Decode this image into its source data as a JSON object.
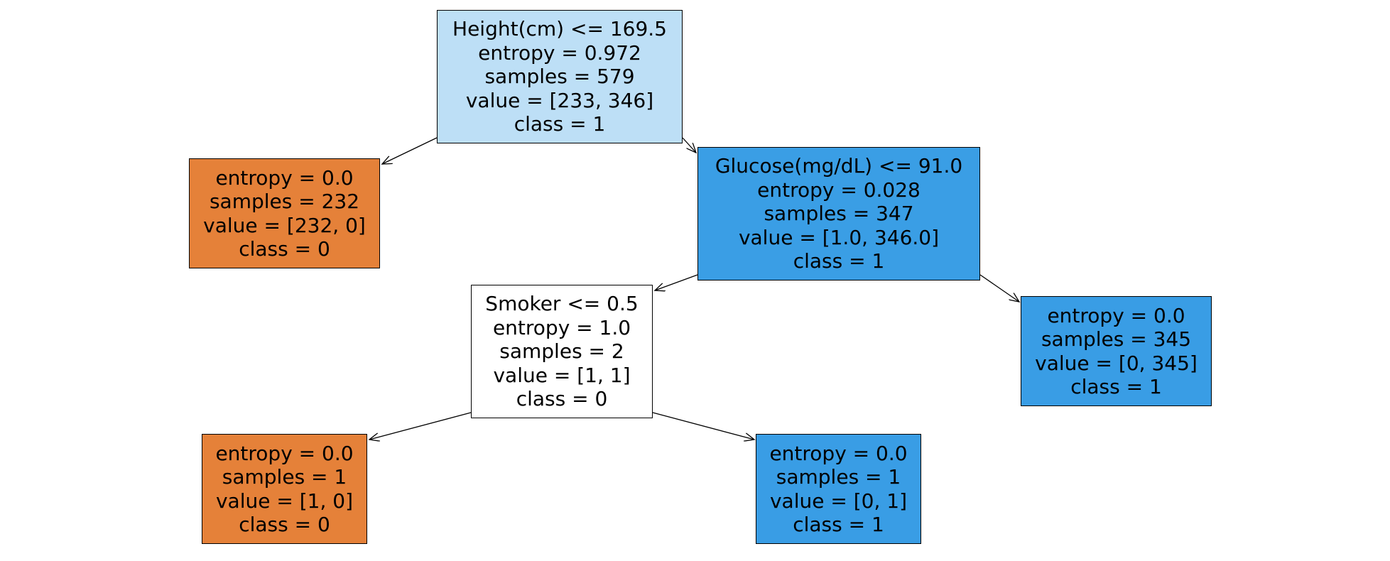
{
  "tree": {
    "colors": {
      "class_0": "#e58139",
      "class_1": "#399de5",
      "root": "#bddff6",
      "neutral": "#ffffff",
      "edge": "#000000"
    },
    "nodes": [
      {
        "id": "root",
        "condition": "Height(cm) <= 169.5",
        "entropy": "entropy = 0.972",
        "samples": "samples = 579",
        "value": "value = [233, 346]",
        "class": "class = 1",
        "color": "#bddff6"
      },
      {
        "id": "leaf-left-1",
        "condition": "",
        "entropy": "entropy = 0.0",
        "samples": "samples = 232",
        "value": "value = [232, 0]",
        "class": "class = 0",
        "color": "#e58139"
      },
      {
        "id": "glucose",
        "condition": "Glucose(mg/dL) <= 91.0",
        "entropy": "entropy = 0.028",
        "samples": "samples = 347",
        "value": "value = [1.0, 346.0]",
        "class": "class = 1",
        "color": "#3a9ee5"
      },
      {
        "id": "smoker",
        "condition": "Smoker <= 0.5",
        "entropy": "entropy = 1.0",
        "samples": "samples = 2",
        "value": "value = [1, 1]",
        "class": "class = 0",
        "color": "#ffffff"
      },
      {
        "id": "leaf-right-glucose",
        "condition": "",
        "entropy": "entropy = 0.0",
        "samples": "samples = 345",
        "value": "value = [0, 345]",
        "class": "class = 1",
        "color": "#399de5"
      },
      {
        "id": "leaf-smoker-left",
        "condition": "",
        "entropy": "entropy = 0.0",
        "samples": "samples = 1",
        "value": "value = [1, 0]",
        "class": "class = 0",
        "color": "#e58139"
      },
      {
        "id": "leaf-smoker-right",
        "condition": "",
        "entropy": "entropy = 0.0",
        "samples": "samples = 1",
        "value": "value = [0, 1]",
        "class": "class = 1",
        "color": "#399de5"
      }
    ],
    "edges": [
      {
        "from": "root",
        "to": "leaf-left-1"
      },
      {
        "from": "root",
        "to": "glucose"
      },
      {
        "from": "glucose",
        "to": "smoker"
      },
      {
        "from": "glucose",
        "to": "leaf-right-glucose"
      },
      {
        "from": "smoker",
        "to": "leaf-smoker-left"
      },
      {
        "from": "smoker",
        "to": "leaf-smoker-right"
      }
    ]
  }
}
